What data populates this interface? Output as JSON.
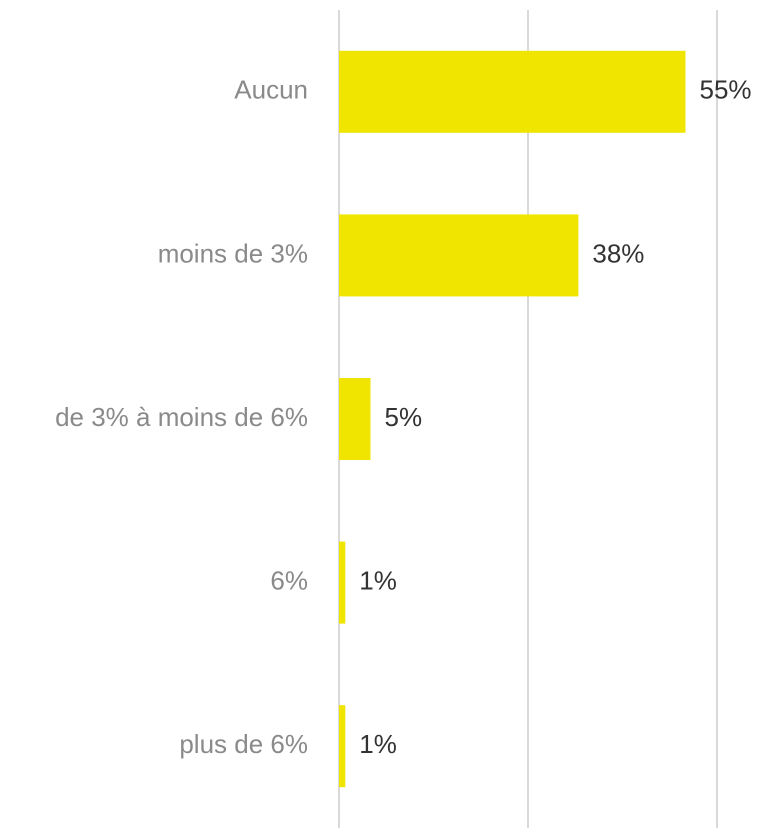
{
  "chart_data": {
    "type": "hbar",
    "categories": [
      "Aucun",
      "moins de 3%",
      "de 3% à moins de 6%",
      "6%",
      "plus de 6%"
    ],
    "values": [
      55,
      38,
      5,
      1,
      1
    ],
    "value_labels": [
      "55%",
      "38%",
      "5%",
      "1%",
      "1%"
    ],
    "color": "#f0e500",
    "xlim": [
      0,
      60
    ],
    "xticks": [
      0,
      30,
      60
    ],
    "grid": true
  }
}
